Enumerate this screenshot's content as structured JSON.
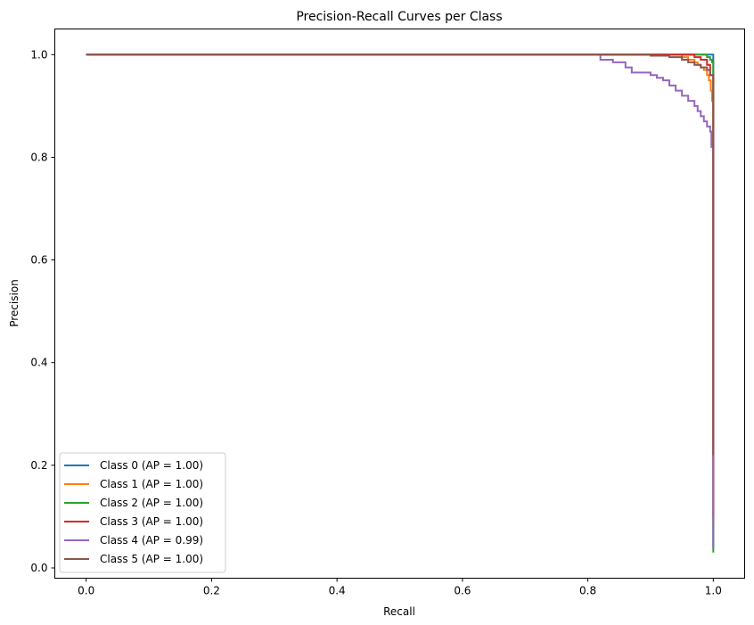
{
  "chart_data": {
    "type": "line",
    "title": "Precision-Recall Curves per Class",
    "xlabel": "Recall",
    "ylabel": "Precision",
    "xlim": [
      -0.05,
      1.05
    ],
    "ylim": [
      -0.02,
      1.05
    ],
    "xticks": [
      "0.0",
      "0.2",
      "0.4",
      "0.6",
      "0.8",
      "1.0"
    ],
    "yticks": [
      "0.0",
      "0.2",
      "0.4",
      "0.6",
      "0.8",
      "1.0"
    ],
    "grid": false,
    "legend_position": "lower-left",
    "series": [
      {
        "name": "Class 0 (AP = 1.00)",
        "color": "#1f77b4",
        "x": [
          0.0,
          0.998,
          1.0,
          1.0
        ],
        "y": [
          1.0,
          1.0,
          1.0,
          0.04
        ]
      },
      {
        "name": "Class 1 (AP = 1.00)",
        "color": "#ff7f0e",
        "x": [
          0.0,
          0.94,
          0.95,
          0.96,
          0.97,
          0.975,
          0.98,
          0.985,
          0.99,
          0.993,
          0.996,
          0.998,
          1.0,
          1.0
        ],
        "y": [
          1.0,
          1.0,
          0.995,
          0.99,
          0.985,
          0.98,
          0.975,
          0.97,
          0.96,
          0.95,
          0.93,
          0.91,
          0.88,
          0.08
        ]
      },
      {
        "name": "Class 2 (AP = 1.00)",
        "color": "#2ca02c",
        "x": [
          0.0,
          0.985,
          0.99,
          0.995,
          0.998,
          1.0,
          1.0
        ],
        "y": [
          1.0,
          1.0,
          0.995,
          0.99,
          0.985,
          0.98,
          0.03
        ]
      },
      {
        "name": "Class 3 (AP = 1.00)",
        "color": "#d62728",
        "x": [
          0.0,
          0.95,
          0.97,
          0.98,
          0.99,
          0.995,
          1.0,
          1.0
        ],
        "y": [
          1.0,
          1.0,
          0.995,
          0.99,
          0.98,
          0.96,
          0.95,
          0.1
        ]
      },
      {
        "name": "Class 4 (AP = 0.99)",
        "color": "#9467bd",
        "x": [
          0.0,
          0.81,
          0.82,
          0.84,
          0.86,
          0.87,
          0.88,
          0.9,
          0.91,
          0.92,
          0.93,
          0.94,
          0.95,
          0.96,
          0.97,
          0.975,
          0.98,
          0.985,
          0.99,
          0.993,
          0.995,
          0.997,
          1.0,
          1.0
        ],
        "y": [
          1.0,
          1.0,
          0.99,
          0.985,
          0.975,
          0.965,
          0.965,
          0.96,
          0.955,
          0.95,
          0.94,
          0.93,
          0.92,
          0.91,
          0.9,
          0.89,
          0.88,
          0.87,
          0.86,
          0.86,
          0.85,
          0.82,
          0.8,
          0.04
        ]
      },
      {
        "name": "Class 5 (AP = 1.00)",
        "color": "#8c564b",
        "x": [
          0.0,
          0.88,
          0.9,
          0.93,
          0.95,
          0.96,
          0.97,
          0.98,
          0.99,
          0.995,
          1.0,
          1.0
        ],
        "y": [
          1.0,
          1.0,
          0.998,
          0.995,
          0.99,
          0.985,
          0.98,
          0.975,
          0.97,
          0.96,
          0.95,
          0.22
        ]
      }
    ]
  }
}
